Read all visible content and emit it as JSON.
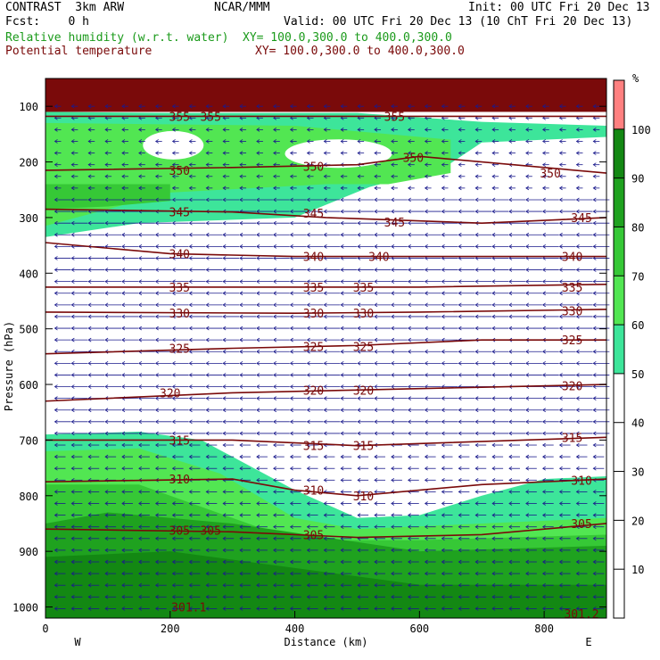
{
  "header": {
    "title": "CONTRAST  3km ARW",
    "center": "NCAR/MMM",
    "init": "Init: 00 UTC Fri 20 Dec 13",
    "fcst": "Fcst:    0 h",
    "valid": "Valid: 00 UTC Fri 20 Dec 13 (10 ChT Fri 20 Dec 13)",
    "rh_label": "Relative humidity (w.r.t. water)",
    "rh_xy": "XY= 100.0,300.0 to 400.0,300.0",
    "theta_label": "Potential temperature",
    "theta_xy": "XY= 100.0,300.0 to 400.0,300.0"
  },
  "colors": {
    "rh_bands": [
      "#ffffff",
      "#ffffff",
      "#ffffff",
      "#ffffff",
      "#ffffff",
      "#3de59a",
      "#52e652",
      "#36c836",
      "#1fa21f",
      "#138813",
      "#ff8080"
    ],
    "theta_line": "#7a0a0a",
    "top_band": "#7a0a0a",
    "wind": "#1a1a8c"
  },
  "chart_data": {
    "type": "cross-section",
    "xlabel": "Distance (km)",
    "ylabel": "Pressure (hPa)",
    "xlim": [
      0,
      900
    ],
    "ylim": [
      1020,
      50
    ],
    "x_ticks": [
      0,
      200,
      400,
      600,
      800
    ],
    "y_ticks": [
      100,
      200,
      300,
      400,
      500,
      600,
      700,
      800,
      900,
      1000
    ],
    "end_labels": {
      "left": "W",
      "right": "E"
    },
    "colorbar": {
      "unit": "%",
      "levels": [
        0,
        10,
        20,
        30,
        40,
        50,
        60,
        70,
        80,
        90,
        100,
        110
      ],
      "tick_labels": [
        "10",
        "20",
        "30",
        "40",
        "50",
        "60",
        "70",
        "80",
        "90",
        "100"
      ]
    },
    "rh_regions": [
      {
        "level": 50,
        "upper": [
          [
            0,
            110
          ],
          [
            200,
            112
          ],
          [
            500,
            112
          ],
          [
            700,
            128
          ],
          [
            900,
            135
          ]
        ],
        "lower": [
          [
            0,
            335
          ],
          [
            150,
            310
          ],
          [
            400,
            300
          ],
          [
            520,
            245
          ],
          [
            640,
            210
          ],
          [
            700,
            165
          ],
          [
            900,
            155
          ]
        ]
      },
      {
        "level": 60,
        "upper": [
          [
            0,
            130
          ],
          [
            400,
            135
          ],
          [
            650,
            160
          ]
        ],
        "lower": [
          [
            0,
            315
          ],
          [
            200,
            255
          ],
          [
            450,
            240
          ],
          [
            550,
            240
          ],
          [
            650,
            220
          ]
        ]
      },
      {
        "level": 70,
        "upper": [
          [
            0,
            240
          ],
          [
            200,
            240
          ]
        ],
        "lower": [
          [
            0,
            285
          ],
          [
            100,
            280
          ],
          [
            200,
            270
          ]
        ]
      },
      {
        "level": 50,
        "upper": [
          [
            0,
            690
          ],
          [
            150,
            685
          ],
          [
            250,
            700
          ],
          [
            400,
            790
          ],
          [
            500,
            840
          ],
          [
            600,
            835
          ],
          [
            700,
            800
          ],
          [
            800,
            770
          ],
          [
            900,
            765
          ]
        ],
        "lower": [
          [
            0,
            1020
          ],
          [
            900,
            1020
          ]
        ]
      },
      {
        "level": 60,
        "upper": [
          [
            0,
            720
          ],
          [
            150,
            715
          ],
          [
            280,
            760
          ],
          [
            400,
            840
          ],
          [
            500,
            860
          ],
          [
            700,
            850
          ],
          [
            900,
            840
          ]
        ],
        "lower": [
          [
            0,
            1020
          ],
          [
            900,
            1020
          ]
        ]
      },
      {
        "level": 70,
        "upper": [
          [
            0,
            780
          ],
          [
            150,
            780
          ],
          [
            400,
            880
          ],
          [
            600,
            880
          ],
          [
            900,
            870
          ]
        ],
        "lower": [
          [
            0,
            1020
          ],
          [
            900,
            1020
          ]
        ]
      },
      {
        "level": 80,
        "upper": [
          [
            0,
            850
          ],
          [
            100,
            830
          ],
          [
            300,
            850
          ],
          [
            600,
            900
          ],
          [
            900,
            890
          ]
        ],
        "lower": [
          [
            0,
            1020
          ],
          [
            900,
            1020
          ]
        ]
      },
      {
        "level": 90,
        "upper": [
          [
            0,
            910
          ],
          [
            200,
            900
          ],
          [
            600,
            960
          ],
          [
            900,
            960
          ]
        ],
        "lower": [
          [
            0,
            1020
          ],
          [
            900,
            1020
          ]
        ]
      }
    ],
    "theta_lines": [
      {
        "value": 355,
        "points": [
          [
            0,
            118
          ],
          [
            900,
            118
          ]
        ],
        "labels": [
          [
            215,
            118
          ],
          [
            265,
            118
          ],
          [
            560,
            118
          ]
        ]
      },
      {
        "value": 350,
        "points": [
          [
            0,
            215
          ],
          [
            300,
            210
          ],
          [
            500,
            205
          ],
          [
            600,
            190
          ],
          [
            900,
            220
          ]
        ],
        "labels": [
          [
            215,
            215
          ],
          [
            430,
            208
          ],
          [
            590,
            192
          ],
          [
            810,
            220
          ]
        ]
      },
      {
        "value": 345,
        "points": [
          [
            0,
            285
          ],
          [
            300,
            290
          ],
          [
            450,
            300
          ],
          [
            700,
            310
          ],
          [
            900,
            300
          ]
        ],
        "labels": [
          [
            215,
            290
          ],
          [
            430,
            292
          ],
          [
            560,
            308
          ],
          [
            860,
            300
          ]
        ]
      },
      {
        "value": 340,
        "points": [
          [
            0,
            345
          ],
          [
            200,
            365
          ],
          [
            400,
            370
          ],
          [
            600,
            370
          ],
          [
            900,
            370
          ]
        ],
        "labels": [
          [
            215,
            365
          ],
          [
            430,
            370
          ],
          [
            535,
            370
          ],
          [
            845,
            370
          ]
        ]
      },
      {
        "value": 335,
        "points": [
          [
            0,
            425
          ],
          [
            400,
            425
          ],
          [
            600,
            425
          ],
          [
            900,
            420
          ]
        ],
        "labels": [
          [
            215,
            425
          ],
          [
            430,
            425
          ],
          [
            510,
            425
          ],
          [
            845,
            425
          ]
        ]
      },
      {
        "value": 330,
        "points": [
          [
            0,
            470
          ],
          [
            400,
            472
          ],
          [
            600,
            470
          ],
          [
            900,
            465
          ]
        ],
        "labels": [
          [
            215,
            472
          ],
          [
            430,
            472
          ],
          [
            510,
            472
          ],
          [
            845,
            468
          ]
        ]
      },
      {
        "value": 325,
        "points": [
          [
            0,
            545
          ],
          [
            300,
            535
          ],
          [
            500,
            530
          ],
          [
            700,
            520
          ],
          [
            900,
            520
          ]
        ],
        "labels": [
          [
            215,
            535
          ],
          [
            430,
            532
          ],
          [
            510,
            532
          ],
          [
            845,
            520
          ]
        ]
      },
      {
        "value": 320,
        "points": [
          [
            0,
            630
          ],
          [
            300,
            615
          ],
          [
            500,
            610
          ],
          [
            700,
            605
          ],
          [
            900,
            600
          ]
        ],
        "labels": [
          [
            200,
            615
          ],
          [
            430,
            610
          ],
          [
            510,
            610
          ],
          [
            845,
            602
          ]
        ]
      },
      {
        "value": 315,
        "points": [
          [
            0,
            700
          ],
          [
            300,
            700
          ],
          [
            500,
            710
          ],
          [
            900,
            695
          ]
        ],
        "labels": [
          [
            215,
            700
          ],
          [
            430,
            710
          ],
          [
            510,
            710
          ],
          [
            845,
            695
          ]
        ]
      },
      {
        "value": 310,
        "points": [
          [
            0,
            775
          ],
          [
            300,
            770
          ],
          [
            400,
            790
          ],
          [
            500,
            800
          ],
          [
            700,
            780
          ],
          [
            900,
            770
          ]
        ],
        "labels": [
          [
            215,
            770
          ],
          [
            430,
            790
          ],
          [
            510,
            800
          ],
          [
            860,
            772
          ]
        ]
      },
      {
        "value": 305,
        "points": [
          [
            0,
            860
          ],
          [
            300,
            865
          ],
          [
            500,
            875
          ],
          [
            700,
            870
          ],
          [
            900,
            850
          ]
        ],
        "labels": [
          [
            215,
            862
          ],
          [
            265,
            862
          ],
          [
            430,
            870
          ],
          [
            860,
            850
          ]
        ]
      },
      {
        "value": 301,
        "points": [],
        "labels": [
          [
            230,
            1000
          ],
          [
            860,
            1012
          ]
        ],
        "label_texts": [
          "301.1",
          "301.2"
        ]
      }
    ],
    "top_band": [
      50,
      110
    ]
  }
}
